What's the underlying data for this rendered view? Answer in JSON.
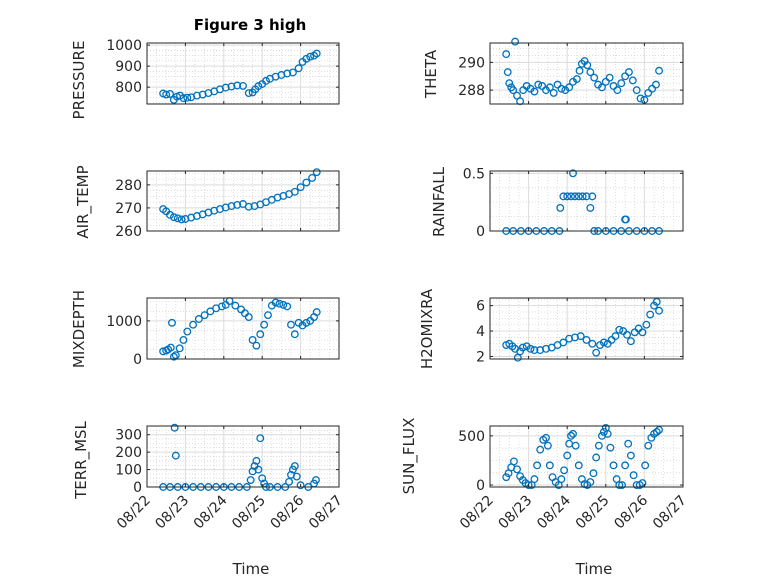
{
  "figure": {
    "title": "Figure 3 high",
    "xlabel": "Time",
    "x_tick_labels": [
      "08/22",
      "08/23",
      "08/24",
      "08/25",
      "08/26",
      "08/27"
    ],
    "marker_color": "#0072BD"
  },
  "chart_data": [
    {
      "type": "scatter",
      "ylabel": "PRESSURE",
      "ylim": [
        720,
        1010
      ],
      "yticks": [
        800,
        900,
        1000
      ],
      "x_unit": "days since 08/22",
      "grid": true,
      "x": [
        0.42,
        0.5,
        0.6,
        0.7,
        0.78,
        0.86,
        0.95,
        1.05,
        1.15,
        1.3,
        1.45,
        1.6,
        1.75,
        1.9,
        2.05,
        2.2,
        2.35,
        2.5,
        2.65,
        2.75,
        2.82,
        2.9,
        3.0,
        3.1,
        3.2,
        3.35,
        3.5,
        3.65,
        3.8,
        3.95,
        4.05,
        4.15,
        4.25,
        4.35,
        4.42
      ],
      "y": [
        770,
        765,
        768,
        740,
        755,
        760,
        748,
        750,
        752,
        760,
        765,
        772,
        780,
        790,
        798,
        803,
        808,
        806,
        772,
        775,
        790,
        805,
        815,
        830,
        840,
        850,
        858,
        865,
        870,
        890,
        920,
        935,
        945,
        950,
        960
      ]
    },
    {
      "type": "scatter",
      "ylabel": "THETA",
      "ylim": [
        287.0,
        291.4
      ],
      "yticks": [
        288,
        290
      ],
      "x_unit": "days since 08/22",
      "grid": true,
      "x": [
        0.42,
        0.46,
        0.5,
        0.55,
        0.6,
        0.65,
        0.7,
        0.78,
        0.86,
        0.95,
        1.05,
        1.15,
        1.25,
        1.35,
        1.45,
        1.55,
        1.65,
        1.75,
        1.85,
        1.95,
        2.05,
        2.15,
        2.25,
        2.32,
        2.38,
        2.45,
        2.52,
        2.6,
        2.7,
        2.8,
        2.9,
        3.0,
        3.1,
        3.2,
        3.3,
        3.4,
        3.5,
        3.6,
        3.7,
        3.8,
        3.9,
        4.0,
        4.1,
        4.2,
        4.3,
        4.38
      ],
      "y": [
        290.6,
        289.3,
        288.5,
        288.2,
        288.0,
        291.5,
        287.6,
        287.2,
        288.0,
        288.3,
        288.1,
        287.9,
        288.4,
        288.3,
        288.0,
        288.2,
        287.8,
        288.4,
        288.1,
        288.0,
        288.2,
        288.6,
        288.8,
        289.4,
        289.9,
        290.1,
        289.8,
        289.3,
        288.9,
        288.4,
        288.2,
        288.6,
        288.9,
        288.3,
        288.0,
        288.5,
        289.0,
        289.3,
        288.7,
        288.0,
        287.4,
        287.3,
        287.8,
        288.1,
        288.4,
        289.4
      ]
    },
    {
      "type": "scatter",
      "ylabel": "AIR_TEMP",
      "ylim": [
        260,
        286
      ],
      "yticks": [
        260,
        270,
        280
      ],
      "x_unit": "days since 08/22",
      "grid": true,
      "x": [
        0.42,
        0.5,
        0.6,
        0.7,
        0.8,
        0.9,
        1.0,
        1.15,
        1.3,
        1.45,
        1.6,
        1.75,
        1.9,
        2.05,
        2.2,
        2.35,
        2.5,
        2.65,
        2.8,
        2.95,
        3.1,
        3.25,
        3.4,
        3.55,
        3.7,
        3.85,
        4.0,
        4.15,
        4.3,
        4.42
      ],
      "y": [
        269.5,
        268.5,
        267.0,
        266.0,
        265.5,
        265.0,
        265.2,
        265.8,
        266.5,
        267.2,
        268.0,
        268.8,
        269.5,
        270.2,
        270.8,
        271.3,
        271.7,
        270.5,
        270.8,
        271.5,
        272.5,
        273.5,
        274.5,
        275.2,
        276.0,
        277.0,
        279.0,
        281.0,
        283.0,
        285.5
      ]
    },
    {
      "type": "scatter",
      "ylabel": "RAINFALL",
      "ylim": [
        0,
        0.52
      ],
      "yticks": [
        0,
        0.5
      ],
      "x_unit": "days since 08/22",
      "grid": true,
      "x": [
        0.42,
        0.6,
        0.8,
        1.0,
        1.2,
        1.4,
        1.6,
        1.8,
        1.82,
        1.9,
        2.0,
        2.1,
        2.15,
        2.2,
        2.3,
        2.4,
        2.5,
        2.6,
        2.65,
        2.7,
        2.8,
        3.0,
        3.2,
        3.4,
        3.5,
        3.52,
        3.6,
        3.8,
        4.0,
        4.2,
        4.38
      ],
      "y": [
        0,
        0,
        0,
        0,
        0,
        0,
        0,
        0,
        0.2,
        0.3,
        0.3,
        0.3,
        0.5,
        0.3,
        0.3,
        0.3,
        0.3,
        0.2,
        0.3,
        0,
        0,
        0,
        0,
        0,
        0.1,
        0.1,
        0,
        0,
        0,
        0,
        0
      ]
    },
    {
      "type": "scatter",
      "ylabel": "MIXDEPTH",
      "ylim": [
        0,
        1600
      ],
      "yticks": [
        0,
        1000
      ],
      "x_unit": "days since 08/22",
      "grid": true,
      "x": [
        0.42,
        0.5,
        0.55,
        0.62,
        0.65,
        0.7,
        0.75,
        0.85,
        0.95,
        1.05,
        1.2,
        1.35,
        1.5,
        1.65,
        1.8,
        1.95,
        2.05,
        2.15,
        2.3,
        2.45,
        2.55,
        2.65,
        2.75,
        2.85,
        2.95,
        3.05,
        3.15,
        3.25,
        3.35,
        3.45,
        3.55,
        3.65,
        3.75,
        3.85,
        3.95,
        4.05,
        4.15,
        4.25,
        4.35,
        4.42
      ],
      "y": [
        200,
        220,
        250,
        300,
        950,
        60,
        100,
        280,
        500,
        720,
        900,
        1050,
        1150,
        1250,
        1330,
        1380,
        1420,
        1520,
        1400,
        1300,
        1200,
        1100,
        500,
        350,
        650,
        900,
        1150,
        1400,
        1480,
        1450,
        1420,
        1380,
        900,
        650,
        950,
        880,
        950,
        1000,
        1100,
        1230
      ]
    },
    {
      "type": "scatter",
      "ylabel": "H2OMIXRA",
      "ylim": [
        1.8,
        6.6
      ],
      "yticks": [
        2,
        4,
        6
      ],
      "x_unit": "days since 08/22",
      "grid": true,
      "x": [
        0.42,
        0.5,
        0.58,
        0.65,
        0.72,
        0.78,
        0.85,
        0.95,
        1.05,
        1.15,
        1.3,
        1.45,
        1.6,
        1.75,
        1.9,
        2.05,
        2.2,
        2.35,
        2.5,
        2.65,
        2.75,
        2.85,
        2.95,
        3.05,
        3.15,
        3.25,
        3.35,
        3.45,
        3.55,
        3.65,
        3.75,
        3.85,
        3.95,
        4.05,
        4.15,
        4.25,
        4.32,
        4.38
      ],
      "y": [
        2.9,
        3.0,
        2.8,
        2.6,
        1.9,
        2.4,
        2.7,
        2.8,
        2.6,
        2.5,
        2.5,
        2.6,
        2.7,
        2.9,
        3.1,
        3.4,
        3.5,
        3.6,
        3.3,
        3.0,
        2.3,
        2.9,
        3.1,
        3.0,
        3.3,
        3.6,
        4.1,
        4.0,
        3.7,
        3.2,
        3.9,
        4.2,
        3.9,
        4.5,
        5.3,
        6.0,
        6.3,
        5.6
      ]
    },
    {
      "type": "scatter",
      "ylabel": "TERR_MSL",
      "ylim": [
        0,
        350
      ],
      "yticks": [
        0,
        100,
        200,
        300
      ],
      "x_unit": "days since 08/22",
      "grid": true,
      "x": [
        0.42,
        0.6,
        0.72,
        0.75,
        0.8,
        1.0,
        1.2,
        1.4,
        1.6,
        1.8,
        2.0,
        2.2,
        2.4,
        2.6,
        2.7,
        2.75,
        2.8,
        2.85,
        2.9,
        2.95,
        3.0,
        3.05,
        3.1,
        3.2,
        3.4,
        3.6,
        3.7,
        3.75,
        3.8,
        3.85,
        3.9,
        4.0,
        4.2,
        4.35,
        4.4
      ],
      "y": [
        0,
        0,
        340,
        180,
        0,
        0,
        0,
        0,
        0,
        0,
        0,
        0,
        0,
        0,
        40,
        90,
        120,
        150,
        100,
        280,
        50,
        20,
        0,
        0,
        0,
        0,
        30,
        70,
        100,
        120,
        60,
        10,
        0,
        20,
        40
      ]
    },
    {
      "type": "scatter",
      "ylabel": "SUN_FLUX",
      "ylim": [
        -20,
        600
      ],
      "yticks": [
        0,
        500
      ],
      "x_unit": "days since 08/22",
      "grid": true,
      "x": [
        0.42,
        0.48,
        0.55,
        0.62,
        0.7,
        0.78,
        0.85,
        0.92,
        1.0,
        1.08,
        1.15,
        1.22,
        1.3,
        1.38,
        1.45,
        1.5,
        1.55,
        1.62,
        1.7,
        1.78,
        1.85,
        1.92,
        2.0,
        2.05,
        2.1,
        2.15,
        2.22,
        2.3,
        2.38,
        2.45,
        2.52,
        2.6,
        2.68,
        2.75,
        2.82,
        2.9,
        2.95,
        3.0,
        3.05,
        3.12,
        3.2,
        3.28,
        3.35,
        3.42,
        3.5,
        3.58,
        3.65,
        3.72,
        3.8,
        3.88,
        3.95,
        4.02,
        4.1,
        4.18,
        4.25,
        4.32,
        4.38
      ],
      "y": [
        80,
        120,
        180,
        240,
        160,
        90,
        50,
        20,
        0,
        0,
        60,
        200,
        360,
        460,
        480,
        400,
        200,
        80,
        30,
        0,
        60,
        150,
        300,
        420,
        500,
        520,
        400,
        200,
        60,
        10,
        0,
        30,
        120,
        280,
        400,
        500,
        540,
        580,
        520,
        380,
        200,
        60,
        0,
        0,
        200,
        420,
        300,
        100,
        0,
        0,
        20,
        200,
        400,
        480,
        520,
        540,
        560
      ]
    }
  ]
}
